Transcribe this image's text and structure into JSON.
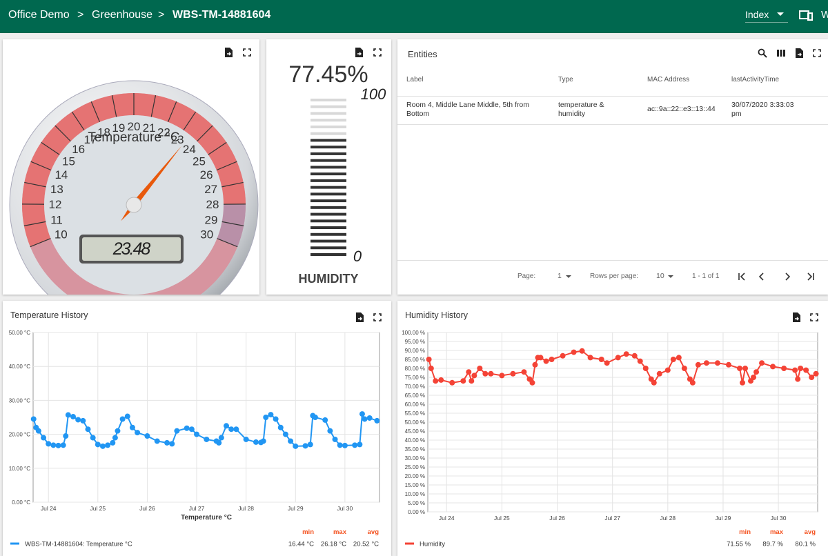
{
  "header": {
    "breadcrumbs": [
      "Office Demo",
      ">",
      "Greenhouse",
      ">",
      "WBS-TM-14881604"
    ],
    "state": "Index",
    "cut_label": "W"
  },
  "gauge": {
    "title": "Temperature °C",
    "min": 10,
    "max": 30,
    "ticks": [
      10,
      11,
      12,
      13,
      14,
      15,
      16,
      17,
      18,
      19,
      20,
      21,
      22,
      23,
      24,
      25,
      26,
      27,
      28,
      29,
      30
    ],
    "value": 23.48
  },
  "humidity": {
    "value": 77.45,
    "value_label": "77.45%",
    "max": 100,
    "min": 0,
    "title": "HUMIDITY"
  },
  "entities": {
    "title": "Entities",
    "columns": [
      "Label",
      "Type",
      "MAC Address",
      "lastActivityTime"
    ],
    "rows": [
      [
        "Room 4, Middle Lane Middle, 5th from Bottom",
        "temperature & humidity",
        "ac::9a::22::e3::13::44",
        "30/07/2020 3:33:03 pm"
      ]
    ],
    "pagination": {
      "page_label": "Page:",
      "page": "1",
      "rows_label": "Rows per page:",
      "rows": "10",
      "range": "1 - 1 of 1"
    }
  },
  "chart_data": [
    {
      "type": "line",
      "title": "Temperature History",
      "xlabel": "Temperature °C",
      "xlim": [
        23.69,
        30.7
      ],
      "xticks": [
        {
          "value": 24,
          "label": "Jul 24"
        },
        {
          "value": 25,
          "label": "Jul 25"
        },
        {
          "value": 26,
          "label": "Jul 26"
        },
        {
          "value": 27,
          "label": "Jul 27"
        },
        {
          "value": 28,
          "label": "Jul 28"
        },
        {
          "value": 29,
          "label": "Jul 29"
        },
        {
          "value": 30,
          "label": "Jul 30"
        }
      ],
      "ylim": [
        0,
        50
      ],
      "yticks": [
        {
          "value": 0,
          "label": "0.00 °C"
        },
        {
          "value": 10,
          "label": "10.00 °C"
        },
        {
          "value": 20,
          "label": "20.00 °C"
        },
        {
          "value": 30,
          "label": "30.00 °C"
        },
        {
          "value": 40,
          "label": "40.00 °C"
        },
        {
          "value": 50,
          "label": "50.00 °C"
        }
      ],
      "grid": true,
      "x": [
        23.7,
        23.75,
        23.8,
        23.9,
        24.0,
        24.1,
        24.2,
        24.3,
        24.35,
        24.4,
        24.5,
        24.6,
        24.7,
        24.8,
        24.9,
        25.0,
        25.1,
        25.2,
        25.3,
        25.35,
        25.4,
        25.5,
        25.6,
        25.7,
        25.8,
        26.0,
        26.2,
        26.4,
        26.5,
        26.6,
        26.8,
        26.9,
        27.0,
        27.2,
        27.4,
        27.45,
        27.5,
        27.6,
        27.7,
        27.8,
        28.0,
        28.2,
        28.3,
        28.35,
        28.4,
        28.5,
        28.6,
        28.7,
        28.8,
        28.9,
        29.0,
        29.2,
        29.3,
        29.35,
        29.4,
        29.6,
        29.7,
        29.8,
        29.9,
        30.0,
        30.2,
        30.3,
        30.35,
        30.4,
        30.5,
        30.65
      ],
      "series": [
        {
          "name": "WBS-TM-14881604: Temperature °C",
          "color": "#2196f3",
          "values": [
            24.5,
            22,
            21,
            19,
            17.2,
            16.8,
            16.7,
            16.8,
            19.5,
            25.7,
            25.2,
            24.3,
            24.0,
            21.5,
            19,
            17,
            16.5,
            16.8,
            17.5,
            19,
            21,
            24.5,
            25.3,
            22,
            20.5,
            19.5,
            18,
            17.5,
            17.2,
            21,
            21.8,
            21.5,
            20,
            18.5,
            18,
            17.5,
            19,
            22.5,
            21.5,
            21.5,
            18.5,
            17.7,
            17.6,
            18,
            25,
            25.8,
            24.5,
            22,
            20,
            18,
            16.5,
            16.6,
            17,
            25.5,
            25,
            24.2,
            21,
            18.5,
            16.8,
            16.7,
            16.8,
            17,
            26,
            24.5,
            24.8,
            24
          ]
        }
      ],
      "stats": {
        "headers": [
          "min",
          "max",
          "avg"
        ],
        "values": [
          "16.44 °C",
          "26.18 °C",
          "20.52 °C"
        ]
      }
    },
    {
      "type": "line",
      "title": "Humidity History",
      "xlim": [
        23.66,
        30.71
      ],
      "xticks": [
        {
          "value": 24,
          "label": "Jul 24"
        },
        {
          "value": 25,
          "label": "Jul 25"
        },
        {
          "value": 26,
          "label": "Jul 26"
        },
        {
          "value": 27,
          "label": "Jul 27"
        },
        {
          "value": 28,
          "label": "Jul 28"
        },
        {
          "value": 29,
          "label": "Jul 29"
        },
        {
          "value": 30,
          "label": "Jul 30"
        }
      ],
      "ylim": [
        0,
        100
      ],
      "yticks": [
        {
          "value": 0,
          "label": "0.00 %"
        },
        {
          "value": 5,
          "label": "5.00 %"
        },
        {
          "value": 10,
          "label": "10.00 %"
        },
        {
          "value": 15,
          "label": "15.00 %"
        },
        {
          "value": 20,
          "label": "20.00 %"
        },
        {
          "value": 25,
          "label": "25.00 %"
        },
        {
          "value": 30,
          "label": "30.00 %"
        },
        {
          "value": 35,
          "label": "35.00 %"
        },
        {
          "value": 40,
          "label": "40.00 %"
        },
        {
          "value": 45,
          "label": "45.00 %"
        },
        {
          "value": 50,
          "label": "50.00 %"
        },
        {
          "value": 55,
          "label": "55.00 %"
        },
        {
          "value": 60,
          "label": "60.00 %"
        },
        {
          "value": 65,
          "label": "65.00 %"
        },
        {
          "value": 70,
          "label": "70.00 %"
        },
        {
          "value": 75,
          "label": "75.00 %"
        },
        {
          "value": 80,
          "label": "80.00 %"
        },
        {
          "value": 85,
          "label": "85.00 %"
        },
        {
          "value": 90,
          "label": "90.00 %"
        },
        {
          "value": 95,
          "label": "95.00 %"
        },
        {
          "value": 100,
          "label": "100.00 %"
        }
      ],
      "grid": true,
      "x": [
        23.68,
        23.72,
        23.8,
        23.9,
        24.1,
        24.3,
        24.4,
        24.45,
        24.5,
        24.6,
        24.7,
        24.8,
        25.0,
        25.2,
        25.4,
        25.5,
        25.55,
        25.6,
        25.65,
        25.7,
        25.8,
        25.9,
        26.1,
        26.3,
        26.45,
        26.6,
        26.8,
        26.9,
        27.1,
        27.25,
        27.4,
        27.5,
        27.6,
        27.7,
        27.75,
        27.85,
        28.0,
        28.1,
        28.2,
        28.3,
        28.4,
        28.45,
        28.55,
        28.7,
        28.9,
        29.1,
        29.3,
        29.35,
        29.4,
        29.5,
        29.55,
        29.6,
        29.7,
        29.9,
        30.1,
        30.3,
        30.35,
        30.4,
        30.5,
        30.6,
        30.68
      ],
      "series": [
        {
          "name": "Humidity",
          "color": "#f44336",
          "values": [
            85,
            80,
            73,
            73.5,
            72,
            73,
            78,
            73,
            76,
            80,
            77,
            77,
            76,
            77,
            78,
            74,
            72,
            82,
            86,
            86,
            84,
            85,
            87,
            89,
            89.7,
            86,
            85,
            83,
            86,
            88,
            87,
            84,
            80,
            74,
            72,
            77,
            79,
            85,
            86,
            80,
            74,
            72,
            82,
            83,
            83,
            82,
            80,
            72,
            80,
            73,
            75,
            78,
            83,
            81,
            80,
            79,
            74,
            80,
            79,
            75,
            77
          ]
        }
      ],
      "stats": {
        "headers": [
          "min",
          "max",
          "avg"
        ],
        "values": [
          "71.55 %",
          "89.7 %",
          "80.1 %"
        ]
      }
    }
  ]
}
